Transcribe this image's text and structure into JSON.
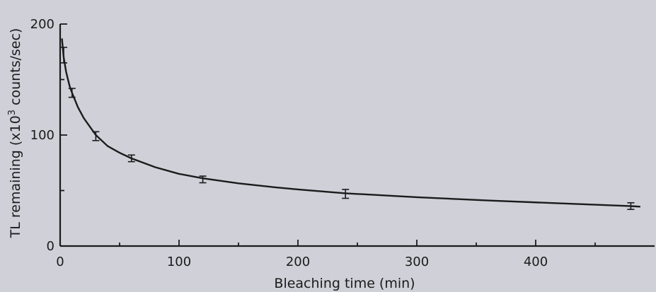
{
  "chart_data": {
    "type": "line",
    "xlabel": "Bleaching time (min)",
    "ylabel_prefix": "TL remaining (x10",
    "ylabel_sup": "3",
    "ylabel_suffix": " counts/sec)",
    "xlim": [
      0,
      480
    ],
    "ylim": [
      0,
      200
    ],
    "x_ticks": [
      0,
      100,
      200,
      300,
      400
    ],
    "x_minor_ticks": [
      50,
      150,
      250,
      350,
      450
    ],
    "y_ticks": [
      0,
      100,
      200
    ],
    "y_minor_ticks": [
      50,
      150
    ],
    "grid": false,
    "legend": "none",
    "series": [
      {
        "points": [
          {
            "x": 3,
            "y": 172,
            "err": 7
          },
          {
            "x": 10,
            "y": 138,
            "err": 4
          },
          {
            "x": 30,
            "y": 99,
            "err": 4
          },
          {
            "x": 60,
            "y": 79,
            "err": 3
          },
          {
            "x": 120,
            "y": 60,
            "err": 3
          },
          {
            "x": 240,
            "y": 47,
            "err": 4
          },
          {
            "x": 480,
            "y": 36,
            "err": 3
          }
        ],
        "fit_curve": [
          [
            1.5,
            187
          ],
          [
            3,
            170
          ],
          [
            5,
            157
          ],
          [
            8,
            144
          ],
          [
            10,
            138
          ],
          [
            15,
            125
          ],
          [
            20,
            115
          ],
          [
            30,
            100
          ],
          [
            40,
            90
          ],
          [
            50,
            84
          ],
          [
            60,
            79
          ],
          [
            80,
            71
          ],
          [
            100,
            65
          ],
          [
            120,
            61
          ],
          [
            150,
            56.5
          ],
          [
            180,
            53
          ],
          [
            200,
            51
          ],
          [
            240,
            47.5
          ],
          [
            300,
            44
          ],
          [
            360,
            41
          ],
          [
            420,
            38.5
          ],
          [
            480,
            36
          ],
          [
            488,
            35.5
          ]
        ]
      }
    ]
  }
}
